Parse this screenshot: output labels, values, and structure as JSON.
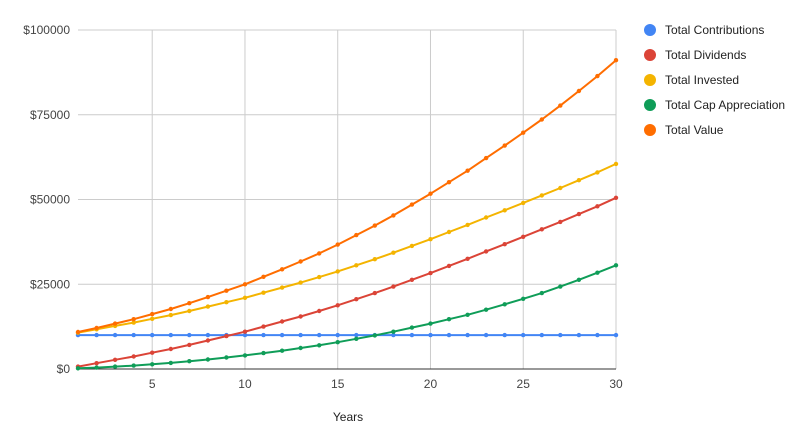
{
  "chart_data": {
    "type": "line",
    "title": "",
    "xlabel": "Years",
    "ylabel": "",
    "xlim": [
      1,
      30
    ],
    "ylim": [
      0,
      100000
    ],
    "x_ticks": [
      5,
      10,
      15,
      20,
      25,
      30
    ],
    "y_ticks": [
      0,
      25000,
      50000,
      75000,
      100000
    ],
    "y_tick_labels": [
      "$0",
      "$25000",
      "$50000",
      "$75000",
      "$100000"
    ],
    "grid": true,
    "legend_position": "right",
    "x": [
      1,
      2,
      3,
      4,
      5,
      6,
      7,
      8,
      9,
      10,
      11,
      12,
      13,
      14,
      15,
      16,
      17,
      18,
      19,
      20,
      21,
      22,
      23,
      24,
      25,
      26,
      27,
      28,
      29,
      30
    ],
    "series": [
      {
        "name": "Total Contributions",
        "color": "#4285F4",
        "values": [
          10000,
          10000,
          10000,
          10000,
          10000,
          10000,
          10000,
          10000,
          10000,
          10000,
          10000,
          10000,
          10000,
          10000,
          10000,
          10000,
          10000,
          10000,
          10000,
          10000,
          10000,
          10000,
          10000,
          10000,
          10000,
          10000,
          10000,
          10000,
          10000,
          10000
        ]
      },
      {
        "name": "Total Dividends",
        "color": "#DB4437",
        "values": [
          700,
          1700,
          2700,
          3700,
          4800,
          5900,
          7100,
          8400,
          9700,
          11000,
          12500,
          14000,
          15500,
          17100,
          18800,
          20600,
          22400,
          24300,
          26300,
          28300,
          30400,
          32500,
          34700,
          36800,
          39000,
          41200,
          43400,
          45700,
          48000,
          50500
        ]
      },
      {
        "name": "Total Invested",
        "color": "#F4B400",
        "values": [
          10700,
          11700,
          12700,
          13700,
          14800,
          15900,
          17100,
          18400,
          19700,
          21000,
          22500,
          24000,
          25500,
          27100,
          28800,
          30600,
          32400,
          34300,
          36300,
          38300,
          40400,
          42500,
          44700,
          46800,
          49000,
          51200,
          53400,
          55700,
          58000,
          60500
        ]
      },
      {
        "name": "Total Cap Appreciation",
        "color": "#0F9D58",
        "values": [
          200,
          400,
          700,
          1000,
          1400,
          1800,
          2300,
          2800,
          3400,
          4000,
          4700,
          5400,
          6200,
          7000,
          7900,
          8900,
          9900,
          11000,
          12200,
          13400,
          14700,
          16000,
          17500,
          19100,
          20700,
          22400,
          24300,
          26300,
          28400,
          30600
        ]
      },
      {
        "name": "Total Value",
        "color": "#FF6D00",
        "values": [
          10900,
          12100,
          13400,
          14700,
          16200,
          17700,
          19400,
          21200,
          23100,
          25000,
          27200,
          29400,
          31700,
          34100,
          36700,
          39500,
          42300,
          45300,
          48500,
          51700,
          55100,
          58500,
          62200,
          65900,
          69700,
          73600,
          77700,
          82000,
          86400,
          91100
        ]
      }
    ]
  }
}
